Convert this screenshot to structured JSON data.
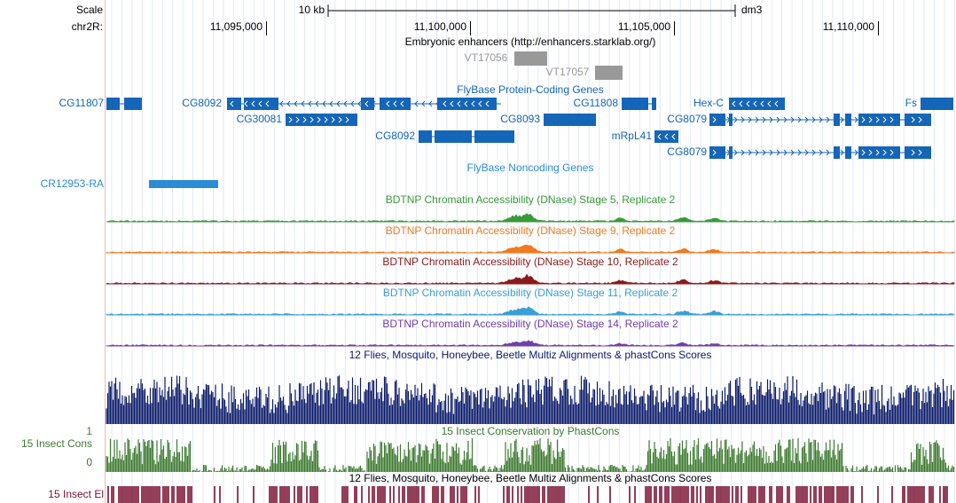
{
  "header": {
    "scale_label": "Scale",
    "chrom_label": "chr2R:",
    "scale_bar": "10 kb",
    "assembly": "dm3",
    "positions": [
      "11,095,000",
      "11,100,000",
      "11,105,000",
      "11,110,000"
    ]
  },
  "tracks": {
    "enhancers": {
      "title": "Embryonic enhancers (http://enhancers.starklab.org/)",
      "items": [
        "VT17056",
        "VT17057"
      ]
    },
    "coding": {
      "title": "FlyBase Protein-Coding Genes",
      "genes": [
        "CG11807",
        "CG8092",
        "CG30081",
        "CG8092",
        "CG8093",
        "CG11808",
        "Hex-C",
        "mRpL41",
        "CG8079",
        "CG8079",
        "Fs"
      ]
    },
    "noncoding": {
      "title": "FlyBase Noncoding Genes",
      "genes": [
        "CR12953-RA"
      ]
    },
    "dnase": [
      "BDTNP Chromatin Accessibility (DNase) Stage 5, Replicate 2",
      "BDTNP Chromatin Accessibility (DNase) Stage 9, Replicate 2",
      "BDTNP Chromatin Accessibility (DNase) Stage 10, Replicate 2",
      "BDTNP Chromatin Accessibility (DNase) Stage 11, Replicate 2",
      "BDTNP Chromatin Accessibility (DNase) Stage 14, Replicate 2"
    ],
    "multiz": {
      "title": "12 Flies, Mosquito, Honeybee, Beetle Multiz Alignments & phastCons Scores"
    },
    "cons": {
      "label": "15 Insect Cons",
      "title": "15 Insect Conservation by PhastCons",
      "axis_top": "1",
      "axis_bottom": "0"
    },
    "elements": {
      "title": "12 Flies, Mosquito, Honeybee, Beetle Multiz Alignments & phastCons Scores",
      "label": "15 Insect El"
    }
  }
}
